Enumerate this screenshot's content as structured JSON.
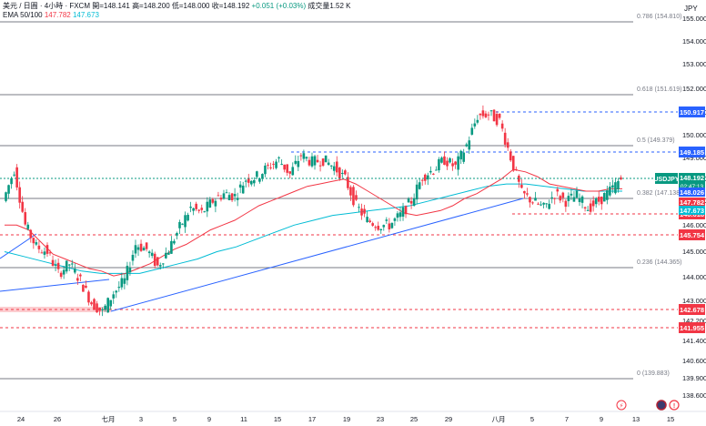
{
  "legend": {
    "symbol": "美元 / 日圓 · 4小時 · FXCM",
    "open": "開=148.141",
    "high": "高=148.200",
    "low": "低=148.000",
    "close": "收=148.192",
    "change": "+0.051 (+0.03%)",
    "volume": "成交量1.52 K",
    "ema_label": "EMA 50/100",
    "ema50": "147.782",
    "ema100": "147.673"
  },
  "currency": "JPY",
  "colors": {
    "up": "#089981",
    "down": "#f23645",
    "ema50": "#f23645",
    "ema100": "#00bcd4",
    "trendline": "#2962ff",
    "fib": "#787b86"
  },
  "chart_data": {
    "type": "candlestick",
    "symbol": "USDJPY",
    "x_ticks": [
      "24",
      "26",
      "七月",
      "3",
      "5",
      "9",
      "11",
      "15",
      "17",
      "19",
      "23",
      "25",
      "29",
      "八月",
      "5",
      "7",
      "9",
      "13",
      "15"
    ],
    "y_ticks": [
      "155.000",
      "154.000",
      "153.000",
      "152.000",
      "151.000",
      "150.000",
      "149.000",
      "148.000",
      "147.000",
      "146.000",
      "145.000",
      "144.000",
      "143.000",
      "142.200",
      "141.400",
      "140.600",
      "139.900",
      "138.600"
    ],
    "ylim": [
      138.6,
      155.6
    ],
    "fib_levels": [
      {
        "ratio": "0.786",
        "price": 154.81,
        "label": "0.786 (154.810)"
      },
      {
        "ratio": "0.618",
        "price": 151.619,
        "label": "0.618 (151.619)"
      },
      {
        "ratio": "0.5",
        "price": 149.379,
        "label": "0.5 (149.379)"
      },
      {
        "ratio": "0.382",
        "price": 147.138,
        "label": "0.382 (147.138)"
      },
      {
        "ratio": "0.236",
        "price": 144.365,
        "label": "0.236 (144.365)"
      },
      {
        "ratio": "0",
        "price": 139.883,
        "label": "0 (139.883)"
      }
    ],
    "dashed_levels": [
      {
        "price": 150.917,
        "label": "150.917",
        "color": "#2962ff"
      },
      {
        "price": 149.185,
        "label": "149.185",
        "color": "#2962ff"
      },
      {
        "price": 146.618,
        "label": "146.618",
        "color": "#f23645"
      },
      {
        "price": 145.754,
        "label": "145.754",
        "color": "#f23645"
      },
      {
        "price": 142.678,
        "label": "142.678",
        "color": "#f23645"
      },
      {
        "price": 141.955,
        "label": "141.955",
        "color": "#f23645"
      }
    ],
    "current": {
      "symbol_tag": "USDJPY",
      "price": 148.192,
      "price_label": "148.192",
      "countdown": "02:47:13"
    },
    "axis_tags": [
      {
        "price": 148.026,
        "label": "148.026",
        "color": "#2962ff"
      },
      {
        "price": 147.782,
        "label": "147.782",
        "color": "#f23645"
      },
      {
        "price": 147.673,
        "label": "147.673",
        "color": "#00bcd4"
      }
    ],
    "path": [
      147.3,
      148.6,
      146.3,
      145.4,
      145.2,
      144.3,
      144.7,
      144.0,
      143.1,
      142.7,
      143.5,
      144.0,
      145.5,
      145.3,
      144.6,
      145.3,
      146.2,
      147.0,
      146.8,
      147.3,
      147.6,
      147.5,
      148.2,
      148.3,
      148.7,
      149.0,
      148.4,
      149.2,
      148.9,
      149.0,
      148.7,
      148.2,
      147.1,
      146.5,
      146.3,
      146.3,
      146.7,
      147.3,
      148.3,
      148.6,
      149.0,
      148.7,
      149.6,
      150.8,
      150.9,
      150.6,
      149.1,
      147.6,
      147.3,
      147.0,
      147.6,
      147.3,
      147.5,
      147.0,
      147.3,
      147.7,
      148.2
    ],
    "ema50": [
      146.3,
      146.3,
      146.1,
      145.6,
      145.1,
      144.9,
      144.7,
      144.5,
      144.4,
      144.2,
      144.3,
      144.5,
      144.7,
      145.0,
      145.3,
      145.5,
      145.8,
      146.1,
      146.3,
      146.5,
      146.8,
      147.1,
      147.3,
      147.5,
      147.7,
      147.9,
      148.0,
      148.1,
      148.2,
      148.0,
      147.7,
      147.4,
      147.1,
      146.8,
      146.7,
      146.8,
      146.9,
      147.1,
      147.4,
      147.6,
      147.9,
      148.2,
      148.6,
      148.5,
      148.3,
      148.0,
      147.9,
      147.8,
      147.7,
      147.7,
      147.8,
      147.8
    ],
    "ema100": [
      145.2,
      145.0,
      144.8,
      144.6,
      144.4,
      144.3,
      144.3,
      144.3,
      144.5,
      144.7,
      144.9,
      145.2,
      145.4,
      145.7,
      146.0,
      146.3,
      146.5,
      146.7,
      146.8,
      146.9,
      147.0,
      147.1,
      147.3,
      147.5,
      147.7,
      147.9,
      148.0,
      148.0,
      147.9,
      147.8,
      147.7,
      147.7,
      147.7
    ],
    "trendlines": [
      {
        "from": [
          "start",
          143.7
        ],
        "to": [
          "7月1日",
          144.1
        ]
      },
      {
        "from": [
          "6月21日",
          145.0
        ],
        "to": [
          "6月26日",
          145.7
        ]
      },
      {
        "from": [
          "7月1日",
          142.5
        ],
        "to": [
          "8月1日",
          147.1
        ]
      }
    ]
  }
}
